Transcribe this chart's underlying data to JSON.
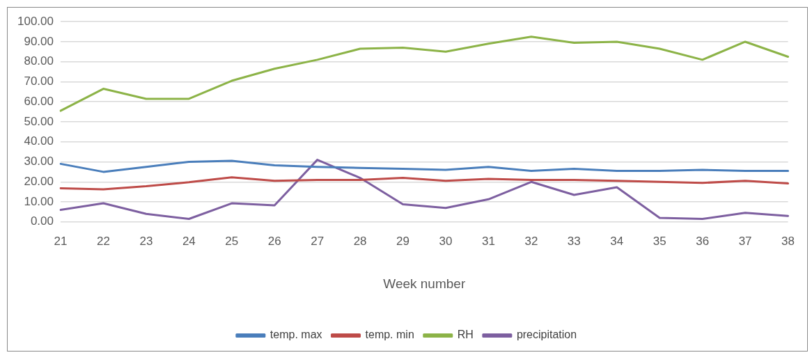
{
  "chart_data": {
    "type": "line",
    "xlabel": "Week number",
    "categories": [
      "21",
      "22",
      "23",
      "24",
      "25",
      "26",
      "27",
      "28",
      "29",
      "30",
      "31",
      "32",
      "33",
      "34",
      "35",
      "36",
      "37",
      "38"
    ],
    "series": [
      {
        "name": "temp. max",
        "color": "#4a7ebb",
        "values": [
          29,
          25,
          27.5,
          30,
          30.5,
          28.3,
          27.5,
          27,
          26.5,
          26,
          27.5,
          25.5,
          26.5,
          25.5,
          25.5,
          26,
          25.5,
          25.5
        ]
      },
      {
        "name": "temp. min",
        "color": "#be4b48",
        "values": [
          16.8,
          16.3,
          17.8,
          19.8,
          22.3,
          20.5,
          21,
          21,
          22,
          20.5,
          21.5,
          21,
          21,
          20.5,
          20,
          19.5,
          20.5,
          19.2
        ]
      },
      {
        "name": "RH",
        "color": "#8cb347",
        "values": [
          55.5,
          66.5,
          61.5,
          61.5,
          70.5,
          76.5,
          81,
          86.5,
          87,
          85,
          89,
          92.5,
          89.5,
          90,
          86.5,
          81,
          90,
          82.5
        ]
      },
      {
        "name": "precipitation",
        "color": "#7d5fa0",
        "values": [
          6,
          9.3,
          4,
          1.5,
          9.3,
          8.3,
          31,
          22,
          8.8,
          7,
          11.3,
          20,
          13.5,
          17.3,
          2,
          1.5,
          4.5,
          3
        ]
      }
    ],
    "ylim": [
      0,
      100
    ],
    "yticks": [
      {
        "value": 0,
        "label": "0.00"
      },
      {
        "value": 10,
        "label": "10.00"
      },
      {
        "value": 20,
        "label": "20.00"
      },
      {
        "value": 30,
        "label": "30.00"
      },
      {
        "value": 40,
        "label": "40.00"
      },
      {
        "value": 50,
        "label": "50.00"
      },
      {
        "value": 60,
        "label": "60.00"
      },
      {
        "value": 70,
        "label": "70.00"
      },
      {
        "value": 80,
        "label": "80.00"
      },
      {
        "value": 90,
        "label": "90.00"
      },
      {
        "value": 100,
        "label": "100.00"
      }
    ],
    "grid": "y",
    "legend": "bottom",
    "marker": "none",
    "line_style": "solid"
  }
}
